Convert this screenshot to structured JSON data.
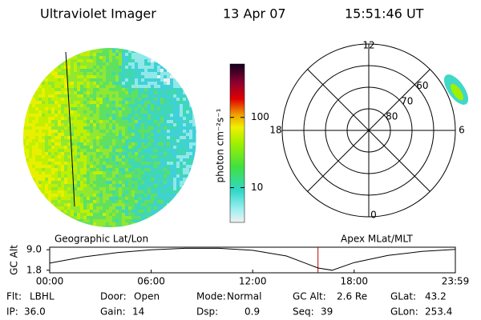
{
  "header": {
    "title": "Ultraviolet Imager",
    "date": "13 Apr 07",
    "time": "15:51:46 UT"
  },
  "image": {
    "label": "Geographic Lat/Lon"
  },
  "colorbar": {
    "label": "photon cm⁻²s⁻¹",
    "scale": "log",
    "lim": [
      3.2,
      575
    ],
    "ticks": [
      10,
      100
    ]
  },
  "polar": {
    "label": "Apex MLat/MLT",
    "rlim": [
      90,
      50
    ],
    "rticks": [
      80,
      70,
      60
    ],
    "mlt_ticks": [
      12,
      6,
      0,
      18
    ]
  },
  "chart_data": {
    "type": "line",
    "ylabel": "GC Alt",
    "x": [
      0,
      2,
      4,
      6,
      8,
      10,
      12,
      14,
      15.863,
      16.7,
      18,
      20,
      22,
      23.983
    ],
    "values": [
      4.3,
      6.5,
      8.0,
      9.0,
      9.5,
      9.5,
      8.8,
      6.8,
      2.6,
      1.8,
      4.5,
      7.0,
      8.4,
      9.1
    ],
    "color": "#000000",
    "xlim": [
      0,
      23.983
    ],
    "xticks": [
      {
        "value": 0,
        "label": "00:00"
      },
      {
        "value": 6,
        "label": "06:00"
      },
      {
        "value": 12,
        "label": "12:00"
      },
      {
        "value": 18,
        "label": "18:00"
      },
      {
        "value": 23.983,
        "label": "23:59"
      }
    ],
    "ylim": [
      0.9,
      9.9
    ],
    "yticks": [
      {
        "value": 9,
        "label": "9.0"
      },
      1.8
    ],
    "marker_x": 15.863,
    "marker_color": "#c00000"
  },
  "footer": {
    "fields": [
      {
        "label": "Flt:",
        "value": "LBHL"
      },
      {
        "label": "Door:",
        "value": "Open"
      },
      {
        "label": "Mode:",
        "value": "Normal"
      },
      {
        "label": "GC Alt:",
        "value": "2.6 Re"
      },
      {
        "label": "GLat:",
        "value": "43.2"
      },
      {
        "label": "IP:",
        "value": "36.0"
      },
      {
        "label": "Gain:",
        "value": "14"
      },
      {
        "label": "Dsp:",
        "value": "0.9"
      },
      {
        "label": "Seq:",
        "value": "39"
      },
      {
        "label": "GLon:",
        "value": "253.4"
      }
    ]
  }
}
